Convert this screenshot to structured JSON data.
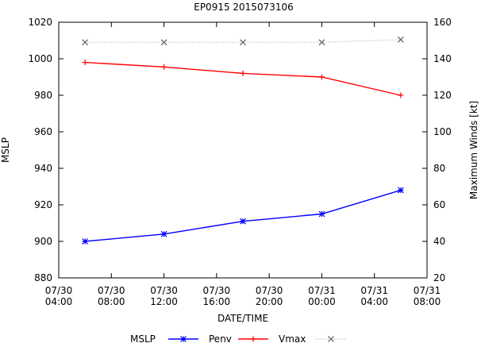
{
  "chart_data": {
    "type": "line",
    "title": "EP0915 2015073106",
    "xlabel": "DATE/TIME",
    "ylabel_left": "MSLP",
    "ylabel_right": "Maximum Winds [kt]",
    "x_ticks": [
      {
        "line1": "07/30",
        "line2": "04:00"
      },
      {
        "line1": "07/30",
        "line2": "08:00"
      },
      {
        "line1": "07/30",
        "line2": "12:00"
      },
      {
        "line1": "07/30",
        "line2": "16:00"
      },
      {
        "line1": "07/30",
        "line2": "20:00"
      },
      {
        "line1": "07/31",
        "line2": "00:00"
      },
      {
        "line1": "07/31",
        "line2": "04:00"
      },
      {
        "line1": "07/31",
        "line2": "08:00"
      }
    ],
    "y_left": {
      "min": 880,
      "max": 1020,
      "ticks": [
        880,
        900,
        920,
        940,
        960,
        980,
        1000,
        1020
      ]
    },
    "y_right": {
      "min": 20,
      "max": 160,
      "ticks": [
        20,
        40,
        60,
        80,
        100,
        120,
        140,
        160
      ]
    },
    "x_times": [
      "07/30 06:00",
      "07/30 12:00",
      "07/30 18:00",
      "07/31 00:00",
      "07/31 06:00"
    ],
    "series": [
      {
        "name": "MSLP",
        "axis": "left",
        "color": "#0000ff",
        "style": "solid",
        "marker": "star",
        "values": [
          900,
          904,
          911,
          915,
          928
        ]
      },
      {
        "name": "Penv",
        "axis": "left",
        "color": "#ff0000",
        "style": "solid",
        "marker": "plus",
        "values": [
          998,
          995.5,
          992,
          990,
          980
        ]
      },
      {
        "name": "Vmax",
        "axis": "right",
        "color": "#a0a0a0",
        "style": "dotted",
        "marker": "cross",
        "values": [
          149,
          149,
          149,
          149,
          150.5
        ]
      }
    ],
    "legend": {
      "position": "bottom",
      "entries": [
        "MSLP",
        "Penv",
        "Vmax"
      ]
    },
    "grid": false
  }
}
